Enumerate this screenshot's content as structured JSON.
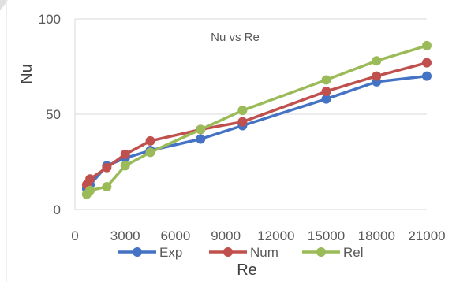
{
  "chart_data": {
    "type": "line",
    "title": "Nu vs Re",
    "xlabel": "Re",
    "ylabel": "Nu",
    "xlim": [
      0,
      21000
    ],
    "ylim": [
      0,
      100
    ],
    "x_ticks": [
      "0",
      "3000",
      "6000",
      "9000",
      "12000",
      "15000",
      "18000",
      "21000"
    ],
    "y_ticks": [
      "0",
      "50",
      "100"
    ],
    "grid": "horizontal",
    "legend_position": "bottom",
    "series": [
      {
        "name": "Exp",
        "color": "#4472C4",
        "x": [
          700,
          900,
          1900,
          3000,
          4500,
          7500,
          10000,
          15000,
          18000,
          21000
        ],
        "y": [
          11,
          13,
          23,
          27,
          31,
          37,
          44,
          58,
          67,
          70
        ]
      },
      {
        "name": "Num",
        "color": "#C0504D",
        "x": [
          700,
          900,
          1900,
          3000,
          4500,
          7500,
          10000,
          15000,
          18000,
          21000
        ],
        "y": [
          13,
          16,
          22,
          29,
          36,
          42,
          46,
          62,
          70,
          77
        ]
      },
      {
        "name": "Rel",
        "color": "#9BBB59",
        "x": [
          700,
          900,
          1900,
          3000,
          4500,
          7500,
          10000,
          15000,
          18000,
          21000
        ],
        "y": [
          8,
          10,
          12,
          23,
          30,
          42,
          52,
          68,
          78,
          86
        ]
      }
    ]
  }
}
